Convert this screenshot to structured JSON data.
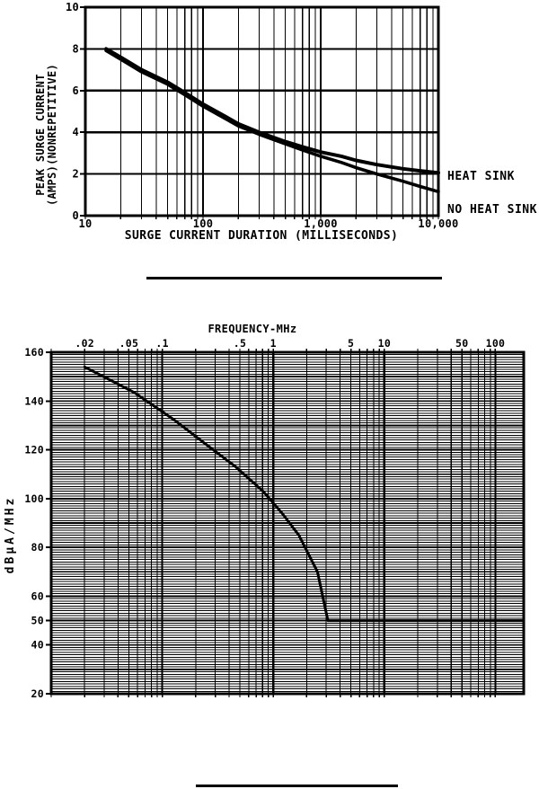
{
  "page": {
    "background": "#ffffff",
    "ink": "#000000"
  },
  "chart_data": [
    {
      "id": "peak-surge-current",
      "type": "line",
      "x_scale": "log",
      "y_scale": "linear",
      "title": "",
      "xlabel": "SURGE CURRENT DURATION (MILLISECONDS)",
      "ylabel_lines": [
        "PEAK SURGE CURRENT",
        "(AMPS)(NONREPETITIVE)"
      ],
      "xlim": [
        10,
        10000
      ],
      "ylim": [
        0,
        10
      ],
      "x_ticks": [
        {
          "v": 10,
          "label": "10"
        },
        {
          "v": 100,
          "label": "100"
        },
        {
          "v": 1000,
          "label": "1,000"
        },
        {
          "v": 10000,
          "label": "10,000"
        }
      ],
      "y_ticks": [
        {
          "v": 10,
          "label": "10"
        },
        {
          "v": 8,
          "label": "8"
        },
        {
          "v": 6,
          "label": "6"
        },
        {
          "v": 4,
          "label": "4"
        },
        {
          "v": 2,
          "label": "2"
        },
        {
          "v": 0,
          "label": "0"
        }
      ],
      "grid": {
        "x": "log-decades-with-minors",
        "y": "lines-at-ticks"
      },
      "legend_position": "right-of-plot",
      "series": [
        {
          "name": "HEAT SINK",
          "points": [
            [
              15,
              8.0
            ],
            [
              20,
              7.6
            ],
            [
              30,
              7.0
            ],
            [
              50,
              6.4
            ],
            [
              70,
              5.9
            ],
            [
              100,
              5.35
            ],
            [
              150,
              4.8
            ],
            [
              200,
              4.4
            ],
            [
              300,
              4.0
            ],
            [
              500,
              3.55
            ],
            [
              700,
              3.3
            ],
            [
              1000,
              3.05
            ],
            [
              1500,
              2.85
            ],
            [
              2000,
              2.65
            ],
            [
              3000,
              2.45
            ],
            [
              5000,
              2.25
            ],
            [
              7000,
              2.15
            ],
            [
              10000,
              2.05
            ]
          ]
        },
        {
          "name": "NO HEAT SINK",
          "points": [
            [
              15,
              7.92
            ],
            [
              20,
              7.5
            ],
            [
              30,
              6.9
            ],
            [
              50,
              6.3
            ],
            [
              70,
              5.8
            ],
            [
              100,
              5.25
            ],
            [
              150,
              4.7
            ],
            [
              200,
              4.3
            ],
            [
              300,
              3.9
            ],
            [
              500,
              3.45
            ],
            [
              700,
              3.15
            ],
            [
              1000,
              2.85
            ],
            [
              1500,
              2.55
            ],
            [
              2000,
              2.3
            ],
            [
              3000,
              2.0
            ],
            [
              5000,
              1.65
            ],
            [
              7000,
              1.4
            ],
            [
              10000,
              1.15
            ]
          ]
        }
      ]
    },
    {
      "id": "emission-vs-frequency",
      "type": "line",
      "x_scale": "log",
      "y_scale": "linear",
      "title": "",
      "xlabel": "FREQUENCY-MHz",
      "xlabel_position": "top",
      "ylabel_lines": [
        "dBµA/MHz"
      ],
      "xlim": [
        0.01,
        180
      ],
      "ylim": [
        20,
        160
      ],
      "x_ticks": [
        {
          "v": 0.02,
          "label": ".02"
        },
        {
          "v": 0.05,
          "label": ".05"
        },
        {
          "v": 0.1,
          "label": ".1"
        },
        {
          "v": 0.5,
          "label": ".5"
        },
        {
          "v": 1,
          "label": "1"
        },
        {
          "v": 5,
          "label": "5"
        },
        {
          "v": 10,
          "label": "10"
        },
        {
          "v": 50,
          "label": "50"
        },
        {
          "v": 100,
          "label": "100"
        }
      ],
      "y_ticks": [
        {
          "v": 160,
          "label": "160"
        },
        {
          "v": 140,
          "label": "140"
        },
        {
          "v": 120,
          "label": "120"
        },
        {
          "v": 100,
          "label": "100"
        },
        {
          "v": 80,
          "label": "80"
        },
        {
          "v": 60,
          "label": "60"
        },
        {
          "v": 50,
          "label": "50"
        },
        {
          "v": 40,
          "label": "40"
        },
        {
          "v": 20,
          "label": "20"
        }
      ],
      "grid": {
        "x": "log-decades-with-minors",
        "y": "minor-every-1dB-major-every-10dB"
      },
      "series": [
        {
          "name": "",
          "points": [
            [
              0.02,
              154
            ],
            [
              0.056,
              143.5
            ],
            [
              0.126,
              132.5
            ],
            [
              0.27,
              121
            ],
            [
              0.46,
              113
            ],
            [
              0.81,
              103
            ],
            [
              1.2,
              94
            ],
            [
              1.7,
              85
            ],
            [
              2.5,
              70
            ],
            [
              3.1,
              50
            ],
            [
              180,
              50
            ]
          ]
        }
      ]
    }
  ]
}
